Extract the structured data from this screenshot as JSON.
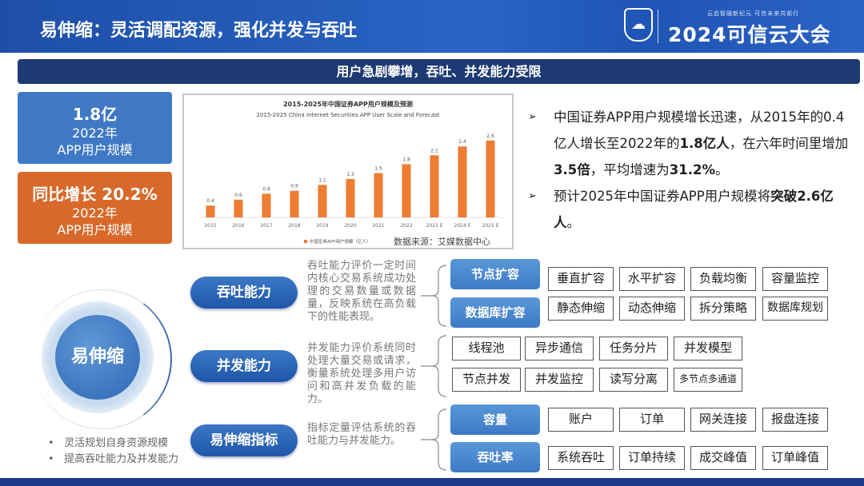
{
  "header": {
    "title": "易伸缩：灵活调配资源，强化并发与吞吐",
    "slogan": "云启智融新纪元  可信未来共前行",
    "event": "2024可信云大会"
  },
  "banner": "用户急剧攀增，吞吐、并发能力受限",
  "cards": [
    {
      "value": "1.8亿",
      "line1": "2022年",
      "line2": "APP用户规模",
      "color": "#3f79c6"
    },
    {
      "value": "同比增长 20.2%",
      "line1": "2022年",
      "line2": "APP用户规模",
      "color": "#d8692a"
    }
  ],
  "chart_data": {
    "type": "bar",
    "title": "2015-2025年中国证券APP用户规模及预测",
    "subtitle": "2015-2025 China Internet Securities APP User Scale and Forecast",
    "categories": [
      "2015",
      "2016",
      "2017",
      "2018",
      "2019",
      "2020",
      "2021",
      "2022",
      "2023 E",
      "2024 E",
      "2025 E"
    ],
    "values": [
      0.4,
      0.6,
      0.8,
      0.9,
      1.1,
      1.3,
      1.5,
      1.8,
      2.1,
      2.4,
      2.6
    ],
    "legend": "中国证券APP用户规模（亿人）",
    "legend_position": "bottom",
    "source": "数据来源：艾媒数据中心",
    "color": "#ed7d31",
    "grid": false
  },
  "bullets": [
    {
      "pre": "中国证券APP用户规模增长迅速，从2015年的0.4亿人增长至2022年的",
      "b1": "1.8亿人",
      "mid": "，在六年时间里增加",
      "b2": "3.5倍",
      "mid2": "，平均增速为",
      "b3": "31.2%",
      "end": "。"
    },
    {
      "pre": "预计2025年中国证券APP用户规模将",
      "b1": "突破2.6亿人",
      "end": "。"
    }
  ],
  "center": {
    "label": "易伸缩",
    "notes": [
      "灵活规划自身资源规模",
      "提高吞吐能力及并发能力"
    ]
  },
  "sections": [
    {
      "pill": "吞吐能力",
      "desc": "吞吐能力评价一定时间内核心交易系统成功处理的交易数量或数据量，反映系统在高负载下的性能表现。"
    },
    {
      "pill": "并发能力",
      "desc": "并发能力评价系统同时处理大量交易或请求，衡量系统处理多用户访问和高并发负载的能力。"
    },
    {
      "pill": "易伸缩指标",
      "desc": "指标定量评估系统的吞吐能力与并发能力。"
    }
  ],
  "groups": [
    {
      "label": "节点扩容",
      "items": [
        "垂直扩容",
        "水平扩容",
        "负载均衡",
        "容量监控"
      ]
    },
    {
      "label": "数据库扩容",
      "items": [
        "静态伸缩",
        "动态伸缩",
        "拆分策略",
        "数据库规划"
      ]
    },
    {
      "items": [
        "线程池",
        "异步通信",
        "任务分片",
        "并发模型"
      ]
    },
    {
      "items": [
        "节点并发",
        "并发监控",
        "读写分离",
        "多节点多通道"
      ]
    },
    {
      "label": "容量",
      "items": [
        "账户",
        "订单",
        "网关连接",
        "报盘连接"
      ]
    },
    {
      "label": "吞吐率",
      "items": [
        "系统吞吐",
        "订单持续",
        "成交峰值",
        "订单峰值"
      ]
    }
  ]
}
